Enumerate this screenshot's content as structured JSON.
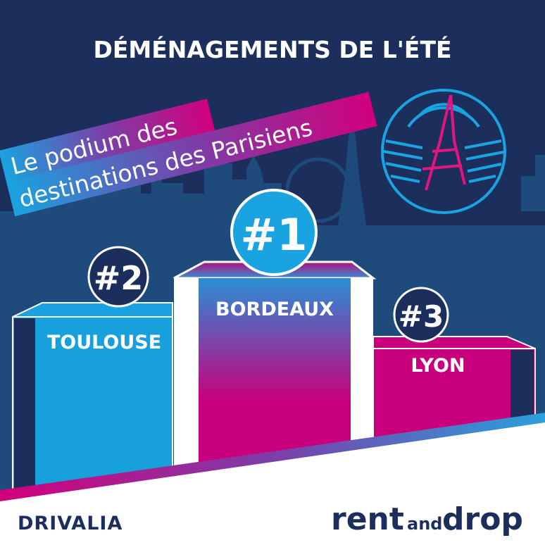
{
  "title": "DÉMÉNAGEMENTS DE L'ÉTÉ",
  "banner": {
    "line1": "Le podium des",
    "line2": "destinations des Parisiens"
  },
  "podium": [
    {
      "rank_label": "#1",
      "city": "BORDEAUX"
    },
    {
      "rank_label": "#2",
      "city": "TOULOUSE"
    },
    {
      "rank_label": "#3",
      "city": "LYON"
    }
  ],
  "logos": {
    "left": "DRIVALIA",
    "right_part1": "rent",
    "right_part2": "and",
    "right_part3": "drop"
  },
  "colors": {
    "navy": "#1c2f5c",
    "blue": "#18a0dc",
    "magenta": "#c8007d",
    "skyline": "#1e4a7c"
  }
}
